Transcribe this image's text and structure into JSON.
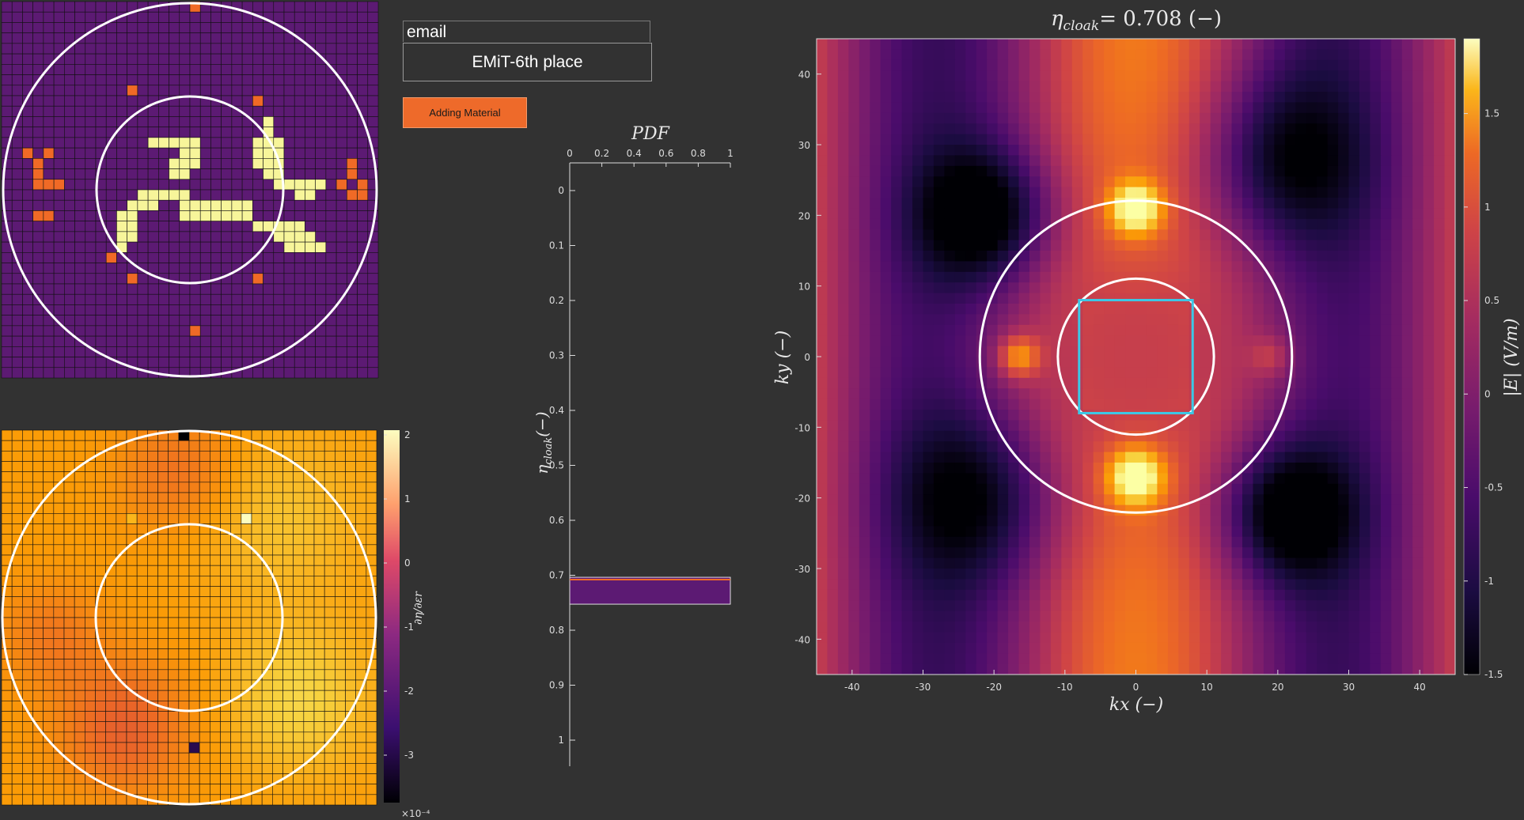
{
  "controls": {
    "email_label": "email",
    "place_text": "EMiT-6th place",
    "add_button_label": "Adding Material"
  },
  "colors": {
    "background": "#323232",
    "grid_material": "#5c1a73",
    "added_material": "#f06a26",
    "core_material": "#f7f59a",
    "cloak_box": "#3cc8e6",
    "circle": "#ffffff"
  },
  "design_map": {
    "grid_size": 36,
    "core_pattern_rows": [
      "..............#.....",
      "..............#.....",
      "...#####.....###....",
      "......##.....###....",
      ".....###.....###....",
      ".....##.......##....",
      "...............#####",
      "..#####..........##.",
      ".###..#######.......",
      "##....#######.......",
      "##...........#####..",
      "##.............####.",
      "#...............####"
    ]
  },
  "sensitivity_map": {
    "colorbar_ticks": [
      "2",
      "1",
      "0",
      "-1",
      "-2",
      "-3"
    ],
    "colorbar_exponent": "×10⁻⁴",
    "colorbar_label": "∂η/∂εr"
  },
  "pdf_plot": {
    "title": "PDF",
    "x_ticks": [
      "0",
      "0.2",
      "0.4",
      "0.6",
      "0.8",
      "1"
    ],
    "y_ticks": [
      "0",
      "0.1",
      "0.2",
      "0.3",
      "0.4",
      "0.5",
      "0.6",
      "0.7",
      "0.8",
      "0.9",
      "1"
    ],
    "y_label": "η",
    "y_label_sub": "cloak",
    "y_label_unit": "(−)"
  },
  "chart_data": {
    "type": "heatmap",
    "title_symbol": "η",
    "title_sub": "cloak",
    "title_value": "= 0.708 (−)",
    "xlabel": "kx (−)",
    "ylabel": "ky (−)",
    "xlim": [
      -45,
      45
    ],
    "ylim": [
      -45,
      45
    ],
    "x_ticks": [
      "-40",
      "-30",
      "-20",
      "-10",
      "0",
      "10",
      "20",
      "30",
      "40"
    ],
    "y_ticks": [
      "40",
      "30",
      "20",
      "10",
      "0",
      "-10",
      "-20",
      "-30",
      "-40"
    ],
    "colorbar_ticks": [
      "1.5",
      "1",
      "0.5",
      "0",
      "-0.5",
      "-1",
      "-1.5"
    ],
    "colorbar_label": "|E| (V/m)",
    "clim": [
      -1.5,
      1.9
    ],
    "outer_circle_radius": 22,
    "inner_circle_radius": 11,
    "cloak_box_half_width": 8,
    "eta_cloak": 0.708
  }
}
